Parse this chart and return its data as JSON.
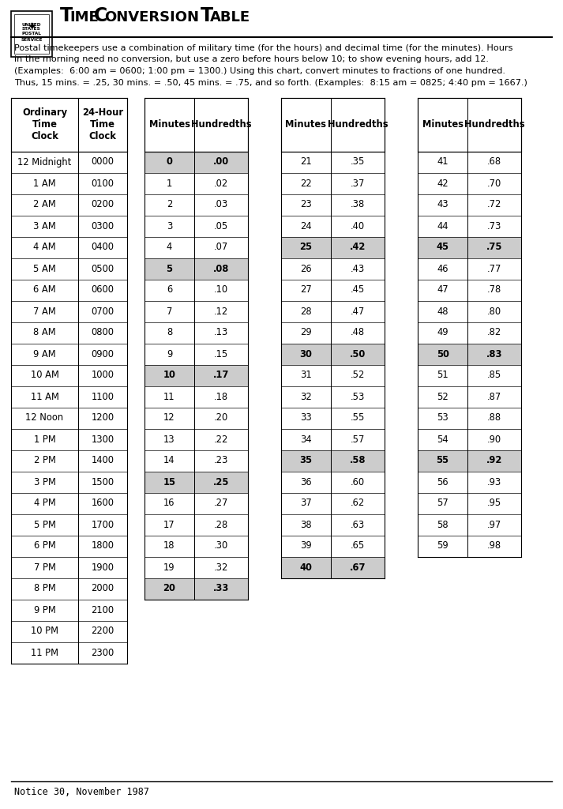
{
  "title_parts": [
    {
      "text": "T",
      "big": true
    },
    {
      "text": "IME ",
      "big": false
    },
    {
      "text": "C",
      "big": true
    },
    {
      "text": "ONVERSION ",
      "big": false
    },
    {
      "text": "T",
      "big": true
    },
    {
      "text": "ABLE",
      "big": false
    }
  ],
  "description_lines": [
    "Postal timekeepers use a combination of military time (for the hours) and decimal time (for the minutes). Hours",
    "in the morning need no conversion, but use a zero before hours below 10; to show evening hours, add 12.",
    "(Examples:  6:00 am = 0600; 1:00 pm = 1300.) Using this chart, convert minutes to fractions of one hundred.",
    "Thus, 15 mins. = .25, 30 mins. = .50, 45 mins. = .75, and so forth. (Examples:  8:15 am = 0825; 4:40 pm = 1667.)"
  ],
  "footer": "Notice 30, November 1987",
  "clock_headers": [
    "Ordinary\nTime\nClock",
    "24-Hour\nTime\nClock"
  ],
  "clock_rows": [
    [
      "12 Midnight",
      "0000"
    ],
    [
      "1 AM",
      "0100"
    ],
    [
      "2 AM",
      "0200"
    ],
    [
      "3 AM",
      "0300"
    ],
    [
      "4 AM",
      "0400"
    ],
    [
      "5 AM",
      "0500"
    ],
    [
      "6 AM",
      "0600"
    ],
    [
      "7 AM",
      "0700"
    ],
    [
      "8 AM",
      "0800"
    ],
    [
      "9 AM",
      "0900"
    ],
    [
      "10 AM",
      "1000"
    ],
    [
      "11 AM",
      "1100"
    ],
    [
      "12 Noon",
      "1200"
    ],
    [
      "1 PM",
      "1300"
    ],
    [
      "2 PM",
      "1400"
    ],
    [
      "3 PM",
      "1500"
    ],
    [
      "4 PM",
      "1600"
    ],
    [
      "5 PM",
      "1700"
    ],
    [
      "6 PM",
      "1800"
    ],
    [
      "7 PM",
      "1900"
    ],
    [
      "8 PM",
      "2000"
    ],
    [
      "9 PM",
      "2100"
    ],
    [
      "10 PM",
      "2200"
    ],
    [
      "11 PM",
      "2300"
    ]
  ],
  "min_headers": [
    "Minutes",
    "Hundredths"
  ],
  "min_table1": [
    [
      "0",
      ".00",
      true
    ],
    [
      "1",
      ".02",
      false
    ],
    [
      "2",
      ".03",
      false
    ],
    [
      "3",
      ".05",
      false
    ],
    [
      "4",
      ".07",
      false
    ],
    [
      "5",
      ".08",
      true
    ],
    [
      "6",
      ".10",
      false
    ],
    [
      "7",
      ".12",
      false
    ],
    [
      "8",
      ".13",
      false
    ],
    [
      "9",
      ".15",
      false
    ],
    [
      "10",
      ".17",
      true
    ],
    [
      "11",
      ".18",
      false
    ],
    [
      "12",
      ".20",
      false
    ],
    [
      "13",
      ".22",
      false
    ],
    [
      "14",
      ".23",
      false
    ],
    [
      "15",
      ".25",
      true
    ],
    [
      "16",
      ".27",
      false
    ],
    [
      "17",
      ".28",
      false
    ],
    [
      "18",
      ".30",
      false
    ],
    [
      "19",
      ".32",
      false
    ],
    [
      "20",
      ".33",
      true
    ]
  ],
  "min_table2": [
    [
      "21",
      ".35",
      false
    ],
    [
      "22",
      ".37",
      false
    ],
    [
      "23",
      ".38",
      false
    ],
    [
      "24",
      ".40",
      false
    ],
    [
      "25",
      ".42",
      true
    ],
    [
      "26",
      ".43",
      false
    ],
    [
      "27",
      ".45",
      false
    ],
    [
      "28",
      ".47",
      false
    ],
    [
      "29",
      ".48",
      false
    ],
    [
      "30",
      ".50",
      true
    ],
    [
      "31",
      ".52",
      false
    ],
    [
      "32",
      ".53",
      false
    ],
    [
      "33",
      ".55",
      false
    ],
    [
      "34",
      ".57",
      false
    ],
    [
      "35",
      ".58",
      true
    ],
    [
      "36",
      ".60",
      false
    ],
    [
      "37",
      ".62",
      false
    ],
    [
      "38",
      ".63",
      false
    ],
    [
      "39",
      ".65",
      false
    ],
    [
      "40",
      ".67",
      true
    ]
  ],
  "min_table3": [
    [
      "41",
      ".68",
      false
    ],
    [
      "42",
      ".70",
      false
    ],
    [
      "43",
      ".72",
      false
    ],
    [
      "44",
      ".73",
      false
    ],
    [
      "45",
      ".75",
      true
    ],
    [
      "46",
      ".77",
      false
    ],
    [
      "47",
      ".78",
      false
    ],
    [
      "48",
      ".80",
      false
    ],
    [
      "49",
      ".82",
      false
    ],
    [
      "50",
      ".83",
      true
    ],
    [
      "51",
      ".85",
      false
    ],
    [
      "52",
      ".87",
      false
    ],
    [
      "53",
      ".88",
      false
    ],
    [
      "54",
      ".90",
      false
    ],
    [
      "55",
      ".92",
      true
    ],
    [
      "56",
      ".93",
      false
    ],
    [
      "57",
      ".95",
      false
    ],
    [
      "58",
      ".97",
      false
    ],
    [
      "59",
      ".98",
      false
    ]
  ],
  "highlight_color": "#cccccc",
  "bg_color": "#ffffff",
  "border_color": "#000000"
}
